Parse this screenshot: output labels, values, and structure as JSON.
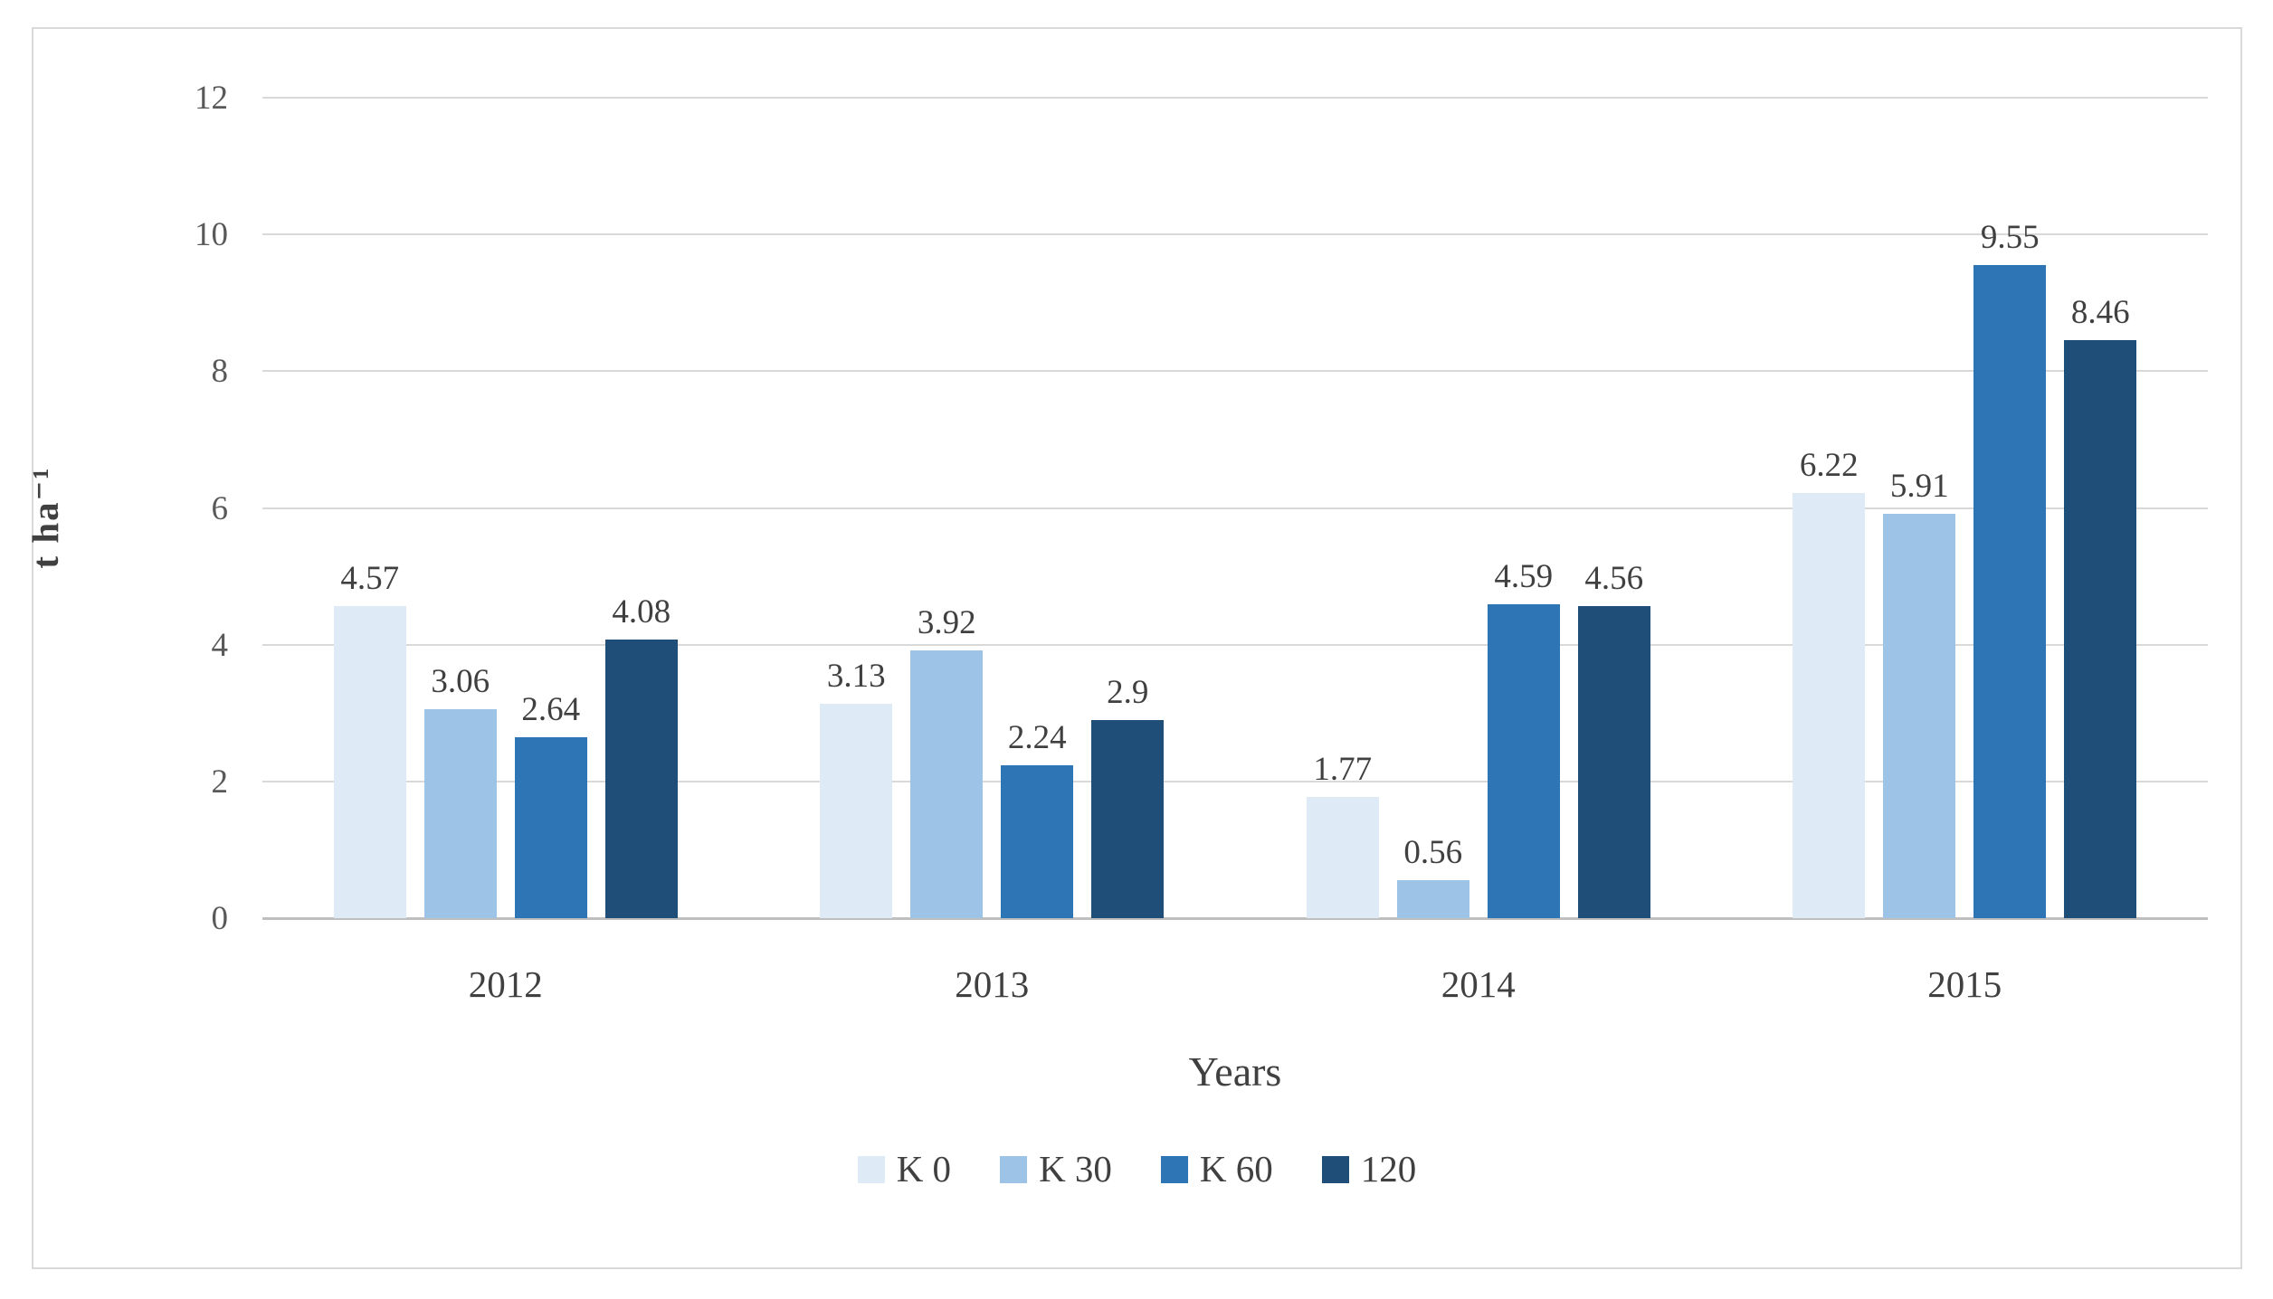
{
  "chart_data": {
    "type": "bar",
    "title": "",
    "xlabel": "Years",
    "ylabel": "t ha⁻¹",
    "categories": [
      "2012",
      "2013",
      "2014",
      "2015"
    ],
    "series": [
      {
        "name": "K 0",
        "color": "#deebf7",
        "values": [
          4.57,
          3.13,
          1.77,
          6.22
        ],
        "labels": [
          "4.57",
          "3.13",
          "1.77",
          "6.22"
        ]
      },
      {
        "name": "K 30",
        "color": "#9dc3e6",
        "values": [
          3.06,
          3.92,
          0.56,
          5.91
        ],
        "labels": [
          "3.06",
          "3.92",
          "0.56",
          "5.91"
        ]
      },
      {
        "name": "K 60",
        "color": "#2e75b6",
        "values": [
          2.64,
          2.24,
          4.59,
          9.55
        ],
        "labels": [
          "2.64",
          "2.24",
          "4.59",
          "9.55"
        ]
      },
      {
        "name": "120",
        "color": "#1f4e79",
        "values": [
          4.08,
          2.9,
          4.56,
          8.46
        ],
        "labels": [
          "4.08",
          "2.9",
          "4.56",
          "8.46"
        ]
      }
    ],
    "ylim": [
      0,
      12
    ],
    "yticks": [
      0,
      2,
      4,
      6,
      8,
      10,
      12
    ],
    "grid": true,
    "gridline_color": "#d9d9d9",
    "axis_line_color": "#bfbfbf",
    "data_labels": true,
    "legend_position": "bottom"
  }
}
